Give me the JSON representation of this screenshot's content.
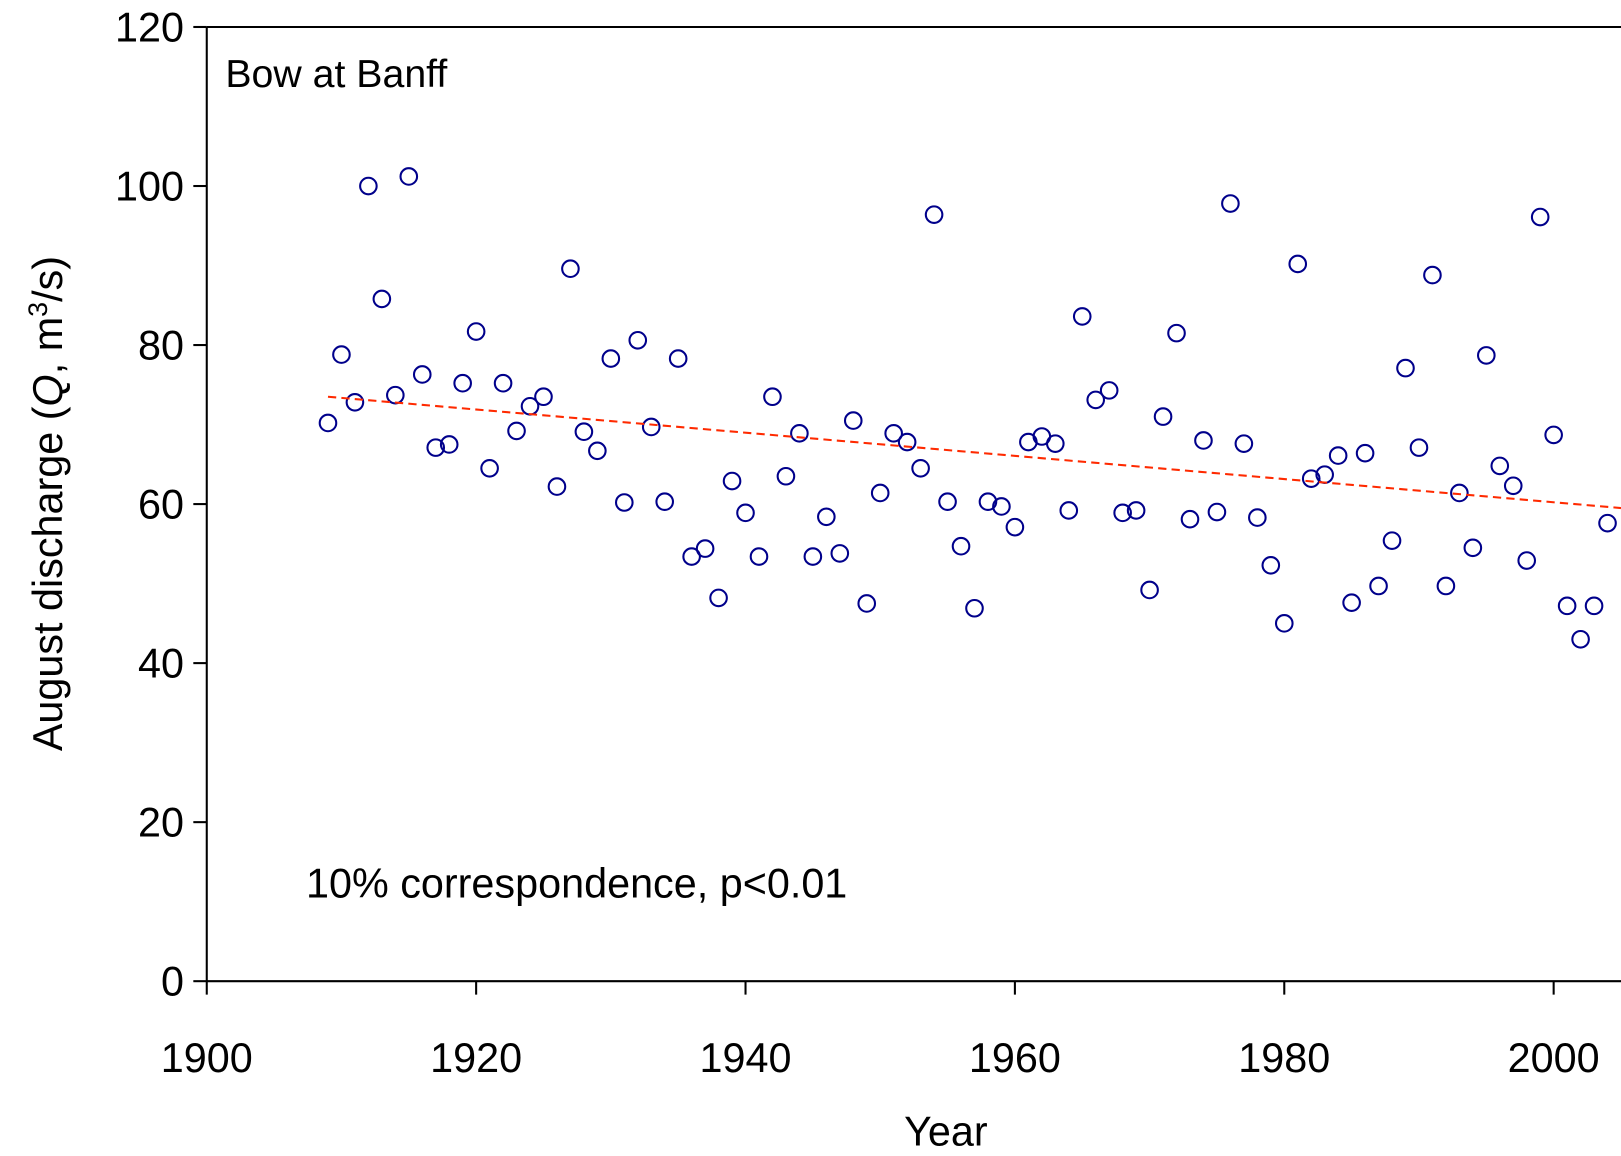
{
  "chart_data": {
    "type": "scatter",
    "xlabel": "Year",
    "ylabel": [
      "August discharge (",
      "Q",
      ",  m",
      "3",
      "/s)"
    ],
    "annotations": [
      "Bow at Banff",
      "10% correspondence, p<0.01"
    ],
    "annotation_colors": [
      "#000000",
      "#ff2a00"
    ],
    "xlim": [
      1900,
      2005
    ],
    "xticks": [
      1900,
      1920,
      1940,
      1960,
      1980,
      2000
    ],
    "ylim": [
      0,
      120
    ],
    "yticks": [
      0,
      20,
      40,
      60,
      80,
      100,
      120
    ],
    "grid": false,
    "series": [
      {
        "color": "#00008b",
        "x": [
          1909,
          1910,
          1911,
          1912,
          1913,
          1914,
          1915,
          1916,
          1917,
          1918,
          1919,
          1920,
          1921,
          1922,
          1923,
          1924,
          1925,
          1926,
          1927,
          1928,
          1929,
          1930,
          1931,
          1932,
          1933,
          1934,
          1935,
          1936,
          1937,
          1938,
          1939,
          1940,
          1941,
          1942,
          1943,
          1944,
          1945,
          1946,
          1947,
          1948,
          1949,
          1950,
          1951,
          1952,
          1953,
          1954,
          1955,
          1956,
          1957,
          1958,
          1959,
          1960,
          1961,
          1962,
          1963,
          1964,
          1965,
          1966,
          1967,
          1968,
          1969,
          1970,
          1971,
          1972,
          1973,
          1974,
          1975,
          1976,
          1977,
          1978,
          1979,
          1980,
          1981,
          1982,
          1983,
          1984,
          1985,
          1986,
          1987,
          1988,
          1989,
          1990,
          1991,
          1992,
          1993,
          1994,
          1995,
          1996,
          1997,
          1998,
          1999,
          2000,
          2001,
          2002,
          2003,
          2004
        ],
        "values": [
          70.2,
          78.8,
          72.8,
          100,
          85.8,
          73.7,
          101.2,
          76.3,
          67.1,
          67.5,
          75.2,
          81.7,
          64.5,
          75.2,
          69.2,
          72.3,
          73.5,
          62.2,
          89.6,
          69.1,
          66.7,
          78.3,
          60.2,
          80.6,
          69.7,
          60.3,
          78.3,
          53.4,
          54.4,
          48.2,
          62.9,
          58.9,
          53.4,
          73.5,
          63.5,
          68.9,
          53.4,
          58.4,
          53.8,
          70.5,
          47.5,
          61.4,
          68.9,
          67.8,
          64.5,
          96.4,
          60.3,
          54.7,
          46.9,
          60.3,
          59.7,
          57.1,
          67.8,
          68.5,
          67.6,
          59.2,
          83.6,
          73.1,
          74.3,
          58.9,
          59.2,
          49.2,
          71.0,
          81.5,
          58.1,
          68.0,
          59.0,
          97.8,
          67.6,
          58.3,
          52.3,
          45.0,
          90.2,
          63.2,
          63.7,
          66.1,
          47.6,
          66.4,
          49.7,
          55.4,
          77.1,
          67.1,
          88.8,
          49.7,
          61.4,
          54.5,
          78.7,
          64.8,
          62.3,
          52.9,
          96.1,
          68.7,
          47.2,
          43.0,
          47.2,
          57.6
        ]
      }
    ],
    "trend": {
      "color": "#ff2a00",
      "x": [
        1909,
        2005
      ],
      "values": [
        73.5,
        59.5
      ]
    }
  }
}
